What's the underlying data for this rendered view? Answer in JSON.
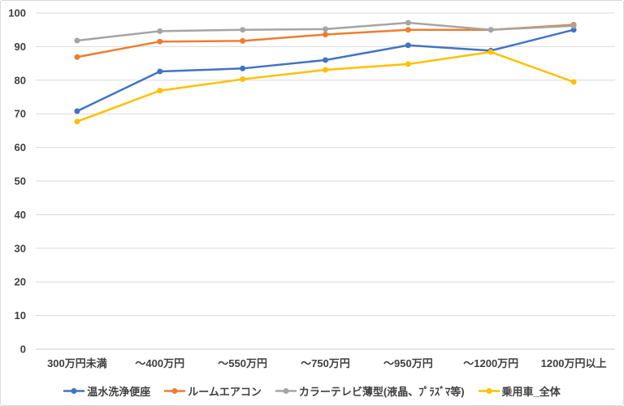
{
  "chart_data": {
    "type": "line",
    "title": "",
    "xlabel": "",
    "ylabel": "",
    "categories": [
      "300万円未満",
      "～400万円",
      "～550万円",
      "～750万円",
      "～950万円",
      "～1200万円",
      "1200万円以上"
    ],
    "series": [
      {
        "name": "温水洗浄便座",
        "color": "#4472C4",
        "values": [
          70.8,
          82.6,
          83.5,
          86.0,
          90.4,
          88.8,
          95.0
        ]
      },
      {
        "name": "ルームエアコン",
        "color": "#ED7D31",
        "values": [
          86.9,
          91.5,
          91.7,
          93.6,
          95.0,
          95.0,
          96.5
        ]
      },
      {
        "name": "カラーテレビ薄型(液晶、ﾌﾟﾗｽﾞﾏ等)",
        "color": "#A5A5A5",
        "values": [
          91.8,
          94.6,
          95.0,
          95.2,
          97.1,
          95.0,
          96.2
        ]
      },
      {
        "name": "乗用車_全体",
        "color": "#FFC000",
        "values": [
          67.7,
          76.9,
          80.3,
          83.1,
          84.8,
          88.4,
          79.5
        ]
      }
    ],
    "ylim": [
      0,
      100
    ],
    "y_ticks": [
      0,
      10,
      20,
      30,
      40,
      50,
      60,
      70,
      80,
      90,
      100
    ],
    "grid": "horizontal",
    "legend_position": "bottom",
    "marker": "circle"
  },
  "colors": {
    "background": "#FFFFFF",
    "gridline": "#D9D9D9",
    "axis_line": "#C8CBD0",
    "tick_text": "#404040",
    "frame_border": "#D6DAE1"
  }
}
